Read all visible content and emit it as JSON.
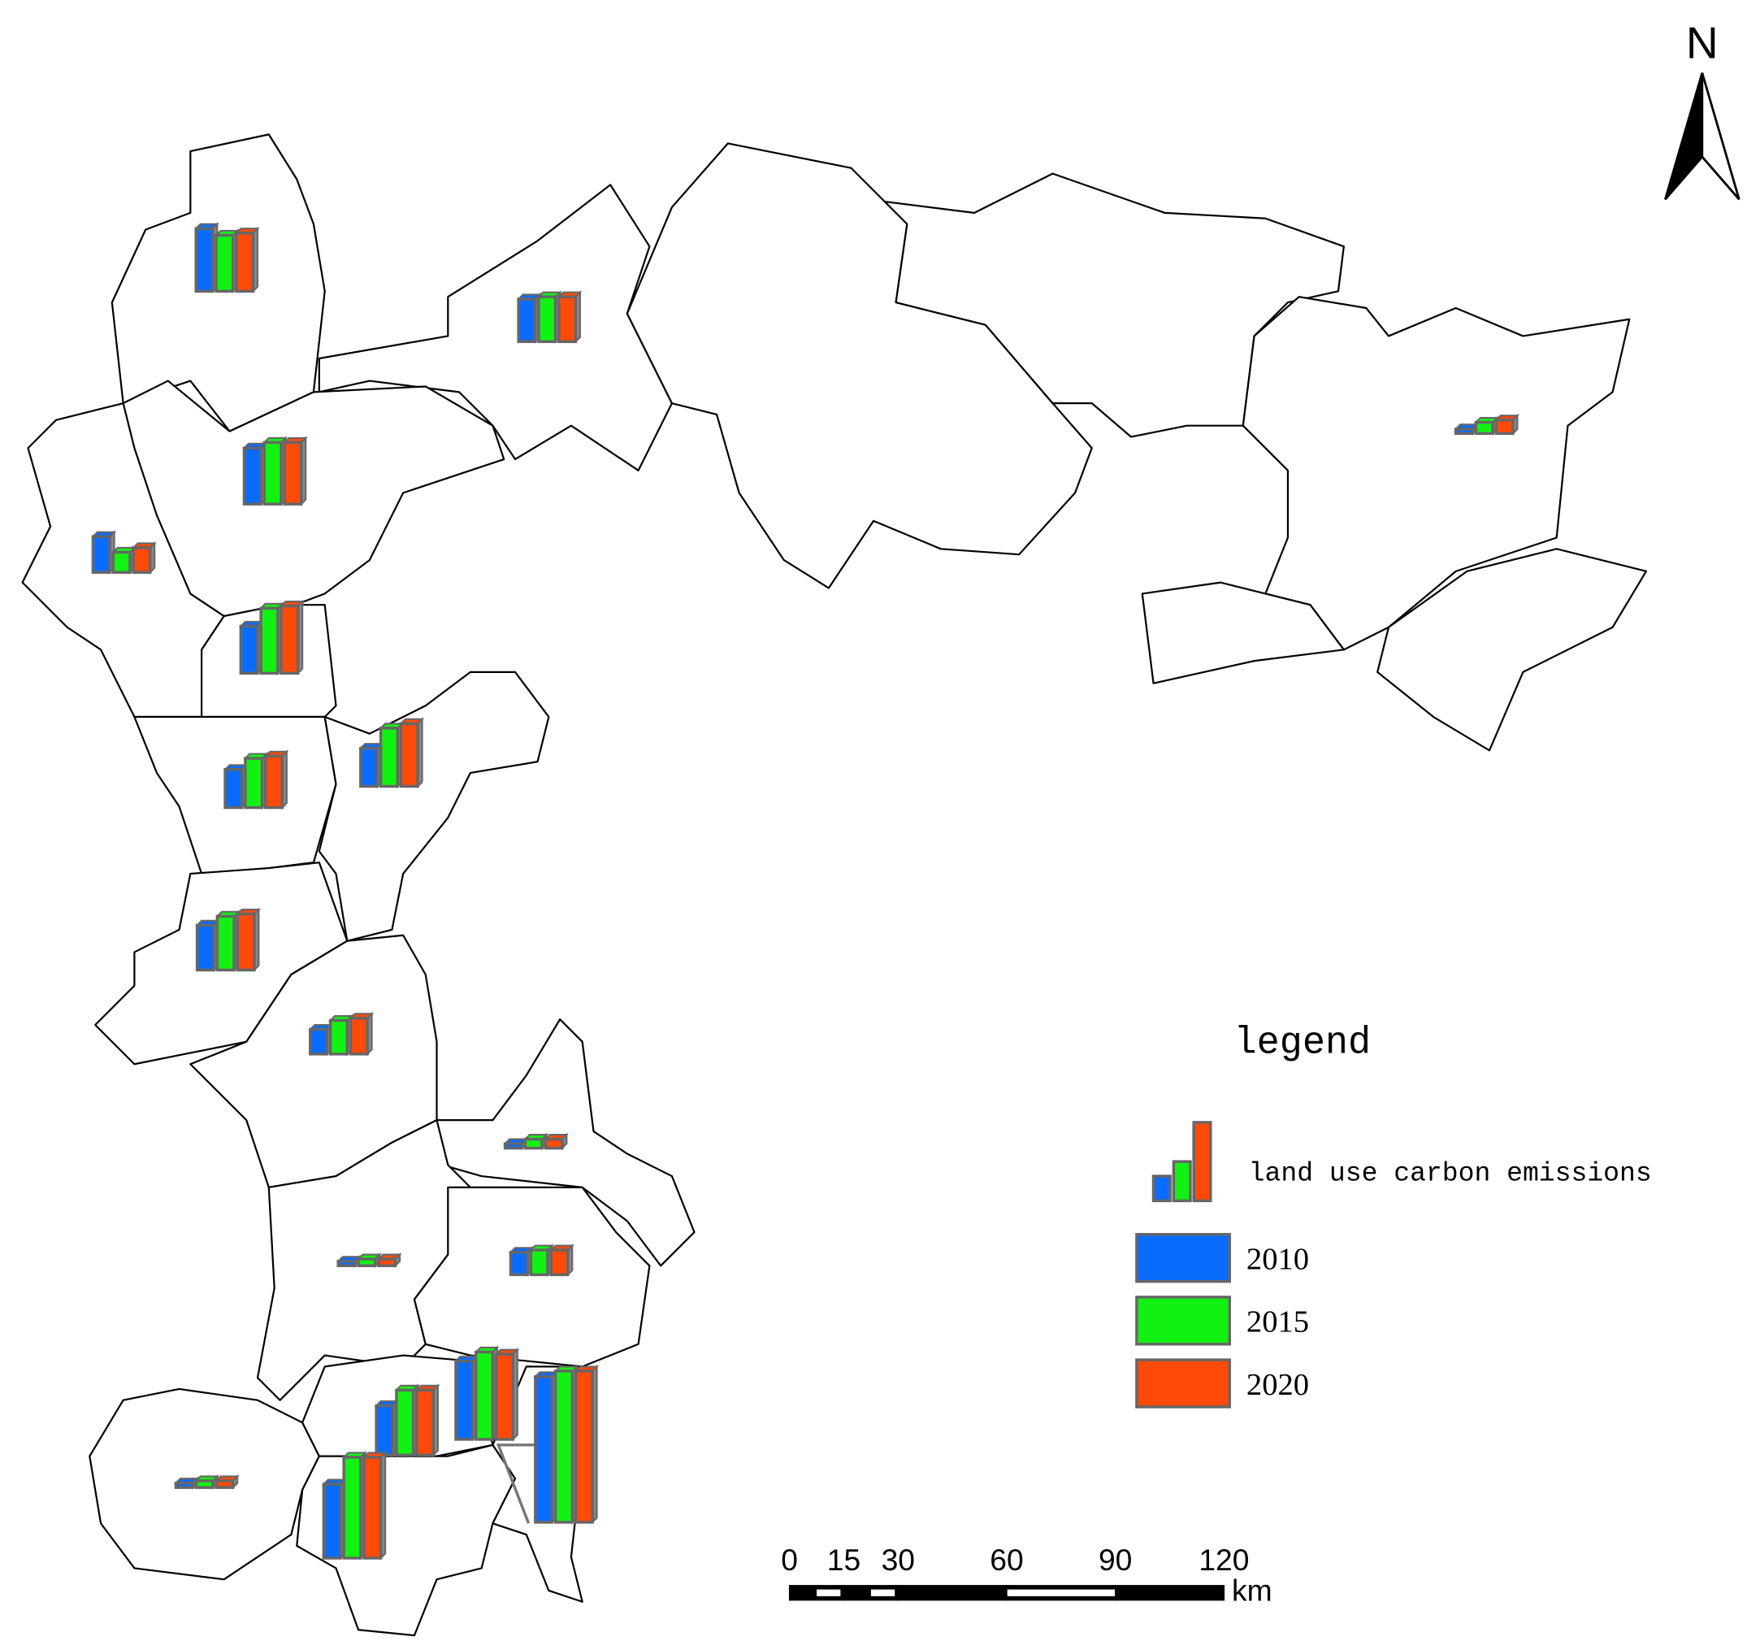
{
  "north": "N",
  "legend": {
    "title": "legend",
    "symbol_label": "land use carbon emissions"
  },
  "chart_data": {
    "type": "bar",
    "categories": [
      null,
      null,
      null,
      null,
      null,
      null,
      null,
      null,
      null,
      null,
      null,
      null,
      null,
      null,
      null,
      null,
      null,
      null
    ],
    "series": [
      {
        "name": "2010",
        "color": "#0a6cff",
        "values": [
          56,
          38,
          50,
          32,
          42,
          34,
          34,
          40,
          22,
          4,
          4,
          20,
          4,
          44,
          66,
          70,
          130,
          4
        ]
      },
      {
        "name": "2015",
        "color": "#12f212",
        "values": [
          50,
          40,
          55,
          18,
          58,
          44,
          52,
          48,
          30,
          8,
          6,
          22,
          6,
          58,
          90,
          78,
          135,
          10
        ]
      },
      {
        "name": "2020",
        "color": "#ff4a0a",
        "values": [
          52,
          40,
          55,
          22,
          60,
          46,
          56,
          50,
          32,
          8,
          6,
          22,
          6,
          58,
          90,
          76,
          135,
          12
        ]
      }
    ]
  },
  "scale_bar": {
    "ticks": [
      0,
      15,
      30,
      60,
      90,
      120
    ],
    "unit": "km"
  }
}
